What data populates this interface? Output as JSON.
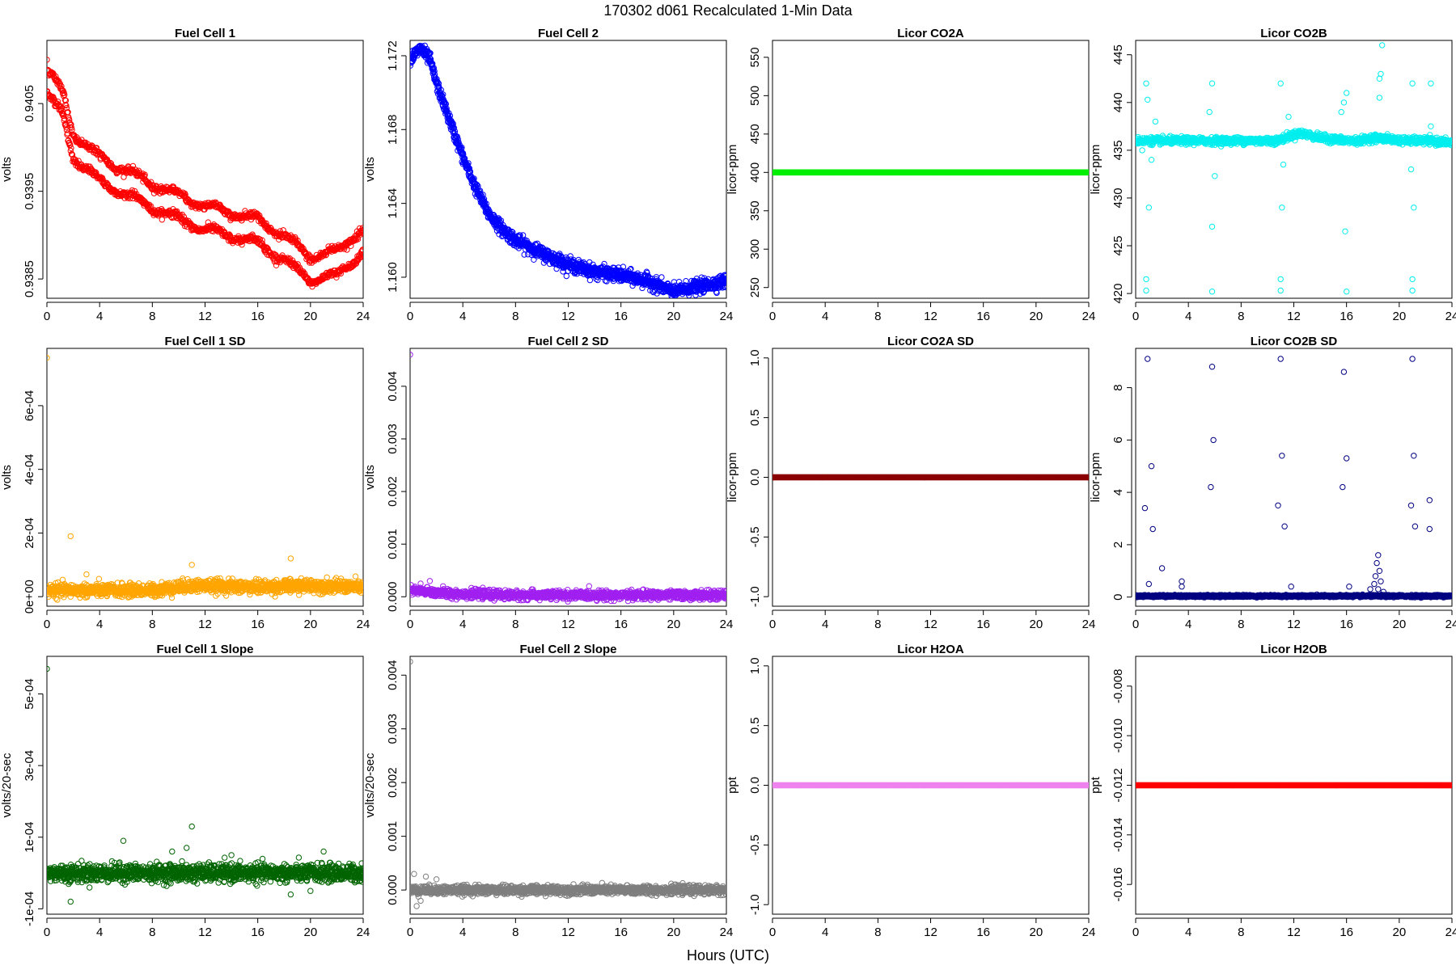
{
  "suptitle": "170302   d061   Recalculated 1-Min Data",
  "xlabel": "Hours (UTC)",
  "chart_data": [
    {
      "type": "scatter",
      "title": "Fuel Cell 1",
      "ylabel": "volts",
      "color": "#ff0000",
      "marker": "circle-open",
      "xlim": [
        0,
        24
      ],
      "ylim": [
        0.93828,
        0.94122
      ],
      "xticks": [
        0,
        4,
        8,
        12,
        16,
        20,
        24
      ],
      "xtick_labels": [
        "0",
        "4",
        "8",
        "12",
        "16",
        "20",
        "24"
      ],
      "yticks": [
        0.9385,
        0.9395,
        0.9405
      ],
      "ytick_labels": [
        "0.9385",
        "0.9395",
        "0.9405"
      ],
      "pattern": "dual",
      "trend": [
        [
          0,
          0.94075
        ],
        [
          1.2,
          0.9405
        ],
        [
          2,
          0.94002
        ],
        [
          4,
          0.93975
        ],
        [
          6,
          0.9396
        ],
        [
          8,
          0.93945
        ],
        [
          10,
          0.93932
        ],
        [
          12,
          0.9392
        ],
        [
          14,
          0.93912
        ],
        [
          16,
          0.93905
        ],
        [
          18,
          0.93885
        ],
        [
          20,
          0.93862
        ],
        [
          22,
          0.93868
        ],
        [
          24,
          0.93895
        ]
      ],
      "offset": 0.00027,
      "noise": 3e-05,
      "outliers": [
        [
          0,
          0.941
        ]
      ]
    },
    {
      "type": "scatter",
      "title": "Fuel Cell 2",
      "ylabel": "volts",
      "color": "#0000ff",
      "marker": "circle-open",
      "xlim": [
        0,
        24
      ],
      "ylim": [
        1.15886,
        1.17283
      ],
      "xticks": [
        0,
        4,
        8,
        12,
        16,
        20,
        24
      ],
      "xtick_labels": [
        "0",
        "4",
        "8",
        "12",
        "16",
        "20",
        "24"
      ],
      "yticks": [
        1.16,
        1.164,
        1.168,
        1.172
      ],
      "ytick_labels": [
        "1.160",
        "1.164",
        "1.168",
        "1.172"
      ],
      "pattern": "single",
      "trend": [
        [
          0,
          1.1718
        ],
        [
          0.8,
          1.1724
        ],
        [
          1.5,
          1.1718
        ],
        [
          2,
          1.1705
        ],
        [
          3,
          1.1685
        ],
        [
          4,
          1.1665
        ],
        [
          5,
          1.1648
        ],
        [
          6,
          1.1634
        ],
        [
          7,
          1.1626
        ],
        [
          8,
          1.162
        ],
        [
          10,
          1.1613
        ],
        [
          12,
          1.1607
        ],
        [
          14,
          1.1603
        ],
        [
          16,
          1.1601
        ],
        [
          18,
          1.1598
        ],
        [
          19,
          1.1595
        ],
        [
          20,
          1.1592
        ],
        [
          21,
          1.1594
        ],
        [
          22,
          1.1595
        ],
        [
          24,
          1.1598
        ]
      ],
      "noise": 0.00018,
      "outliers": []
    },
    {
      "type": "scatter",
      "title": "Licor CO2A",
      "ylabel": "licor-ppm",
      "color": "#00ee00",
      "marker": "circle-filled",
      "xlim": [
        0,
        24
      ],
      "ylim": [
        236,
        572
      ],
      "xticks": [
        0,
        4,
        8,
        12,
        16,
        20,
        24
      ],
      "xtick_labels": [
        "0",
        "4",
        "8",
        "12",
        "16",
        "20",
        "24"
      ],
      "yticks": [
        250,
        300,
        350,
        400,
        450,
        500,
        550
      ],
      "ytick_labels": [
        "250",
        "300",
        "350",
        "400",
        "450",
        "500",
        "550"
      ],
      "pattern": "flat",
      "value": 400,
      "outliers": []
    },
    {
      "type": "scatter",
      "title": "Licor CO2B",
      "ylabel": "licor-ppm",
      "color": "#00eeee",
      "marker": "circle-open",
      "xlim": [
        0,
        24
      ],
      "ylim": [
        419.5,
        446.5
      ],
      "xticks": [
        0,
        4,
        8,
        12,
        16,
        20,
        24
      ],
      "xtick_labels": [
        "0",
        "4",
        "8",
        "12",
        "16",
        "20",
        "24"
      ],
      "yticks": [
        420,
        425,
        430,
        435,
        440,
        445
      ],
      "ytick_labels": [
        "420",
        "425",
        "430",
        "435",
        "440",
        "445"
      ],
      "pattern": "single",
      "trend": [
        [
          0,
          436
        ],
        [
          10.8,
          436
        ],
        [
          11.5,
          436.4
        ],
        [
          12.5,
          436.8
        ],
        [
          14,
          436.3
        ],
        [
          16,
          436
        ],
        [
          17,
          436
        ],
        [
          18,
          436.3
        ],
        [
          19,
          436.2
        ],
        [
          20.5,
          436
        ],
        [
          22,
          436
        ],
        [
          24,
          435.8
        ]
      ],
      "noise": 0.18,
      "outliers": [
        [
          0.8,
          442
        ],
        [
          0.9,
          440.3
        ],
        [
          1.0,
          429
        ],
        [
          0.8,
          421.5
        ],
        [
          0.8,
          420.3
        ],
        [
          1.2,
          434
        ],
        [
          1.5,
          438
        ],
        [
          0.5,
          435
        ],
        [
          5.8,
          442
        ],
        [
          5.8,
          427
        ],
        [
          5.8,
          420.2
        ],
        [
          6.0,
          432.3
        ],
        [
          5.6,
          439
        ],
        [
          11.0,
          442
        ],
        [
          11.1,
          429
        ],
        [
          11.0,
          421.5
        ],
        [
          11.0,
          420.3
        ],
        [
          11.2,
          433.5
        ],
        [
          11.6,
          438.5
        ],
        [
          15.8,
          440
        ],
        [
          15.9,
          426.5
        ],
        [
          16.0,
          420.2
        ],
        [
          15.6,
          439
        ],
        [
          16.0,
          441
        ],
        [
          18.5,
          442.5
        ],
        [
          18.6,
          443
        ],
        [
          18.7,
          446
        ],
        [
          18.5,
          440.5
        ],
        [
          21.0,
          442
        ],
        [
          21.1,
          429
        ],
        [
          21.0,
          421.5
        ],
        [
          21.0,
          420.3
        ],
        [
          20.9,
          433
        ],
        [
          22.4,
          442
        ],
        [
          22.4,
          437.5
        ]
      ]
    },
    {
      "type": "scatter",
      "title": "Fuel Cell 1 SD",
      "ylabel": "volts",
      "color": "#ffa500",
      "marker": "circle-open",
      "xlim": [
        0,
        24
      ],
      "ylim": [
        -3e-05,
        0.00078
      ],
      "xticks": [
        0,
        4,
        8,
        12,
        16,
        20,
        24
      ],
      "xtick_labels": [
        "0",
        "4",
        "8",
        "12",
        "16",
        "20",
        "24"
      ],
      "yticks": [
        0,
        0.0002,
        0.0004,
        0.0006
      ],
      "ytick_labels": [
        "0e+00",
        "2e-04",
        "4e-04",
        "6e-04"
      ],
      "pattern": "single",
      "trend": [
        [
          0,
          2e-05
        ],
        [
          8,
          2e-05
        ],
        [
          11,
          3.5e-05
        ],
        [
          16,
          3e-05
        ],
        [
          20,
          3.5e-05
        ],
        [
          24,
          3e-05
        ]
      ],
      "noise": 1e-05,
      "outliers": [
        [
          0,
          0.00075
        ],
        [
          1.8,
          0.00019
        ],
        [
          11,
          0.0001
        ],
        [
          18.5,
          0.00012
        ],
        [
          3,
          7e-05
        ]
      ]
    },
    {
      "type": "scatter",
      "title": "Fuel Cell 2 SD",
      "ylabel": "volts",
      "color": "#a020f0",
      "marker": "circle-open",
      "xlim": [
        0,
        24
      ],
      "ylim": [
        -0.00018,
        0.00472
      ],
      "xticks": [
        0,
        4,
        8,
        12,
        16,
        20,
        24
      ],
      "xtick_labels": [
        "0",
        "4",
        "8",
        "12",
        "16",
        "20",
        "24"
      ],
      "yticks": [
        0,
        0.001,
        0.002,
        0.003,
        0.004
      ],
      "ytick_labels": [
        "0.000",
        "0.001",
        "0.002",
        "0.003",
        "0.004"
      ],
      "pattern": "single",
      "trend": [
        [
          0,
          0.00012
        ],
        [
          3,
          6e-05
        ],
        [
          8,
          3e-05
        ],
        [
          24,
          3e-05
        ]
      ],
      "noise": 4e-05,
      "outliers": [
        [
          0,
          0.0046
        ],
        [
          1.5,
          0.0003
        ],
        [
          0.8,
          0.00025
        ],
        [
          2.5,
          0.0002
        ]
      ]
    },
    {
      "type": "scatter",
      "title": "Licor CO2A SD",
      "ylabel": "licor-ppm",
      "color": "#8b0000",
      "marker": "circle-filled",
      "xlim": [
        0,
        24
      ],
      "ylim": [
        -1.08,
        1.08
      ],
      "xticks": [
        0,
        4,
        8,
        12,
        16,
        20,
        24
      ],
      "xtick_labels": [
        "0",
        "4",
        "8",
        "12",
        "16",
        "20",
        "24"
      ],
      "yticks": [
        -1,
        -0.5,
        0,
        0.5,
        1
      ],
      "ytick_labels": [
        "-1.0",
        "-0.5",
        "0.0",
        "0.5",
        "1.0"
      ],
      "pattern": "flat",
      "value": 0,
      "outliers": []
    },
    {
      "type": "scatter",
      "title": "Licor CO2B SD",
      "ylabel": "licor-ppm",
      "color": "#000080",
      "marker": "circle-open",
      "xlim": [
        0,
        24
      ],
      "ylim": [
        -0.35,
        9.5
      ],
      "xticks": [
        0,
        4,
        8,
        12,
        16,
        20,
        24
      ],
      "xtick_labels": [
        "0",
        "4",
        "8",
        "12",
        "16",
        "20",
        "24"
      ],
      "yticks": [
        0,
        2,
        4,
        6,
        8
      ],
      "ytick_labels": [
        "0",
        "2",
        "4",
        "6",
        "8"
      ],
      "pattern": "single",
      "trend": [
        [
          0,
          0.04
        ],
        [
          24,
          0.04
        ]
      ],
      "noise": 0.02,
      "outliers": [
        [
          0.9,
          9.1
        ],
        [
          1.2,
          5.0
        ],
        [
          0.7,
          3.4
        ],
        [
          1.3,
          2.6
        ],
        [
          2.0,
          1.1
        ],
        [
          1.0,
          0.5
        ],
        [
          3.5,
          0.6
        ],
        [
          3.5,
          0.4
        ],
        [
          5.8,
          8.8
        ],
        [
          5.9,
          6.0
        ],
        [
          5.7,
          4.2
        ],
        [
          11.0,
          9.1
        ],
        [
          11.1,
          5.4
        ],
        [
          10.8,
          3.5
        ],
        [
          11.3,
          2.7
        ],
        [
          11.8,
          0.4
        ],
        [
          15.8,
          8.6
        ],
        [
          16.0,
          5.3
        ],
        [
          15.7,
          4.2
        ],
        [
          16.2,
          0.4
        ],
        [
          18.4,
          1.6
        ],
        [
          18.3,
          1.3
        ],
        [
          18.5,
          1.0
        ],
        [
          18.2,
          0.8
        ],
        [
          18.6,
          0.6
        ],
        [
          18.1,
          0.5
        ],
        [
          18.4,
          0.3
        ],
        [
          18.8,
          0.2
        ],
        [
          17.8,
          0.3
        ],
        [
          21.0,
          9.1
        ],
        [
          21.1,
          5.4
        ],
        [
          20.9,
          3.5
        ],
        [
          21.2,
          2.7
        ],
        [
          22.3,
          3.7
        ],
        [
          22.3,
          2.6
        ]
      ]
    },
    {
      "type": "scatter",
      "title": "Fuel Cell 1 Slope",
      "ylabel": "volts/20-sec",
      "color": "#006400",
      "marker": "circle-open",
      "xlim": [
        0,
        24
      ],
      "ylim": [
        -0.000115,
        0.000605
      ],
      "xticks": [
        0,
        4,
        8,
        12,
        16,
        20,
        24
      ],
      "xtick_labels": [
        "0",
        "4",
        "8",
        "12",
        "16",
        "20",
        "24"
      ],
      "yticks": [
        -0.0001,
        0.0001,
        0.0003,
        0.0005
      ],
      "ytick_labels": [
        "-1e-04",
        "1e-04",
        "3e-04",
        "5e-04"
      ],
      "pattern": "single",
      "trend": [
        [
          0,
          0
        ],
        [
          24,
          0
        ]
      ],
      "noise": 1.2e-05,
      "outliers": [
        [
          0,
          0.00057
        ],
        [
          5.8,
          9e-05
        ],
        [
          11,
          0.00013
        ],
        [
          10.6,
          7e-05
        ],
        [
          1.8,
          -8e-05
        ],
        [
          18.5,
          -6e-05
        ],
        [
          20,
          -5e-05
        ],
        [
          9.5,
          6e-05
        ],
        [
          14,
          5e-05
        ],
        [
          21,
          6e-05
        ]
      ]
    },
    {
      "type": "scatter",
      "title": "Fuel Cell 2 Slope",
      "ylabel": "volts/20-sec",
      "color": "#7f7f7f",
      "marker": "circle-open",
      "xlim": [
        0,
        24
      ],
      "ylim": [
        -0.00045,
        0.00435
      ],
      "xticks": [
        0,
        4,
        8,
        12,
        16,
        20,
        24
      ],
      "xtick_labels": [
        "0",
        "4",
        "8",
        "12",
        "16",
        "20",
        "24"
      ],
      "yticks": [
        0,
        0.001,
        0.002,
        0.003,
        0.004
      ],
      "ytick_labels": [
        "0.000",
        "0.001",
        "0.002",
        "0.003",
        "0.004"
      ],
      "pattern": "single",
      "trend": [
        [
          0,
          0
        ],
        [
          24,
          0
        ]
      ],
      "noise": 4e-05,
      "outliers": [
        [
          0,
          0.00425
        ],
        [
          0.5,
          -0.0003
        ],
        [
          0.3,
          0.0003
        ],
        [
          1.2,
          0.00025
        ],
        [
          2,
          0.0002
        ],
        [
          0.8,
          -0.0002
        ]
      ]
    },
    {
      "type": "scatter",
      "title": "Licor H2OA",
      "ylabel": "ppt",
      "color": "#ee82ee",
      "marker": "circle-filled",
      "xlim": [
        0,
        24
      ],
      "ylim": [
        -1.08,
        1.08
      ],
      "xticks": [
        0,
        4,
        8,
        12,
        16,
        20,
        24
      ],
      "xtick_labels": [
        "0",
        "4",
        "8",
        "12",
        "16",
        "20",
        "24"
      ],
      "yticks": [
        -1,
        -0.5,
        0,
        0.5,
        1
      ],
      "ytick_labels": [
        "-1.0",
        "-0.5",
        "0.0",
        "0.5",
        "1.0"
      ],
      "pattern": "flat",
      "value": 0,
      "outliers": []
    },
    {
      "type": "scatter",
      "title": "Licor H2OB",
      "ylabel": "ppt",
      "color": "#ff0000",
      "marker": "circle-filled",
      "xlim": [
        0,
        24
      ],
      "ylim": [
        -0.0172,
        -0.0068
      ],
      "xticks": [
        0,
        4,
        8,
        12,
        16,
        20,
        24
      ],
      "xtick_labels": [
        "0",
        "4",
        "8",
        "12",
        "16",
        "20",
        "24"
      ],
      "yticks": [
        -0.016,
        -0.014,
        -0.012,
        -0.01,
        -0.008
      ],
      "ytick_labels": [
        "-0.016",
        "-0.014",
        "-0.012",
        "-0.010",
        "-0.008"
      ],
      "pattern": "flat",
      "value": -0.012,
      "outliers": []
    }
  ]
}
